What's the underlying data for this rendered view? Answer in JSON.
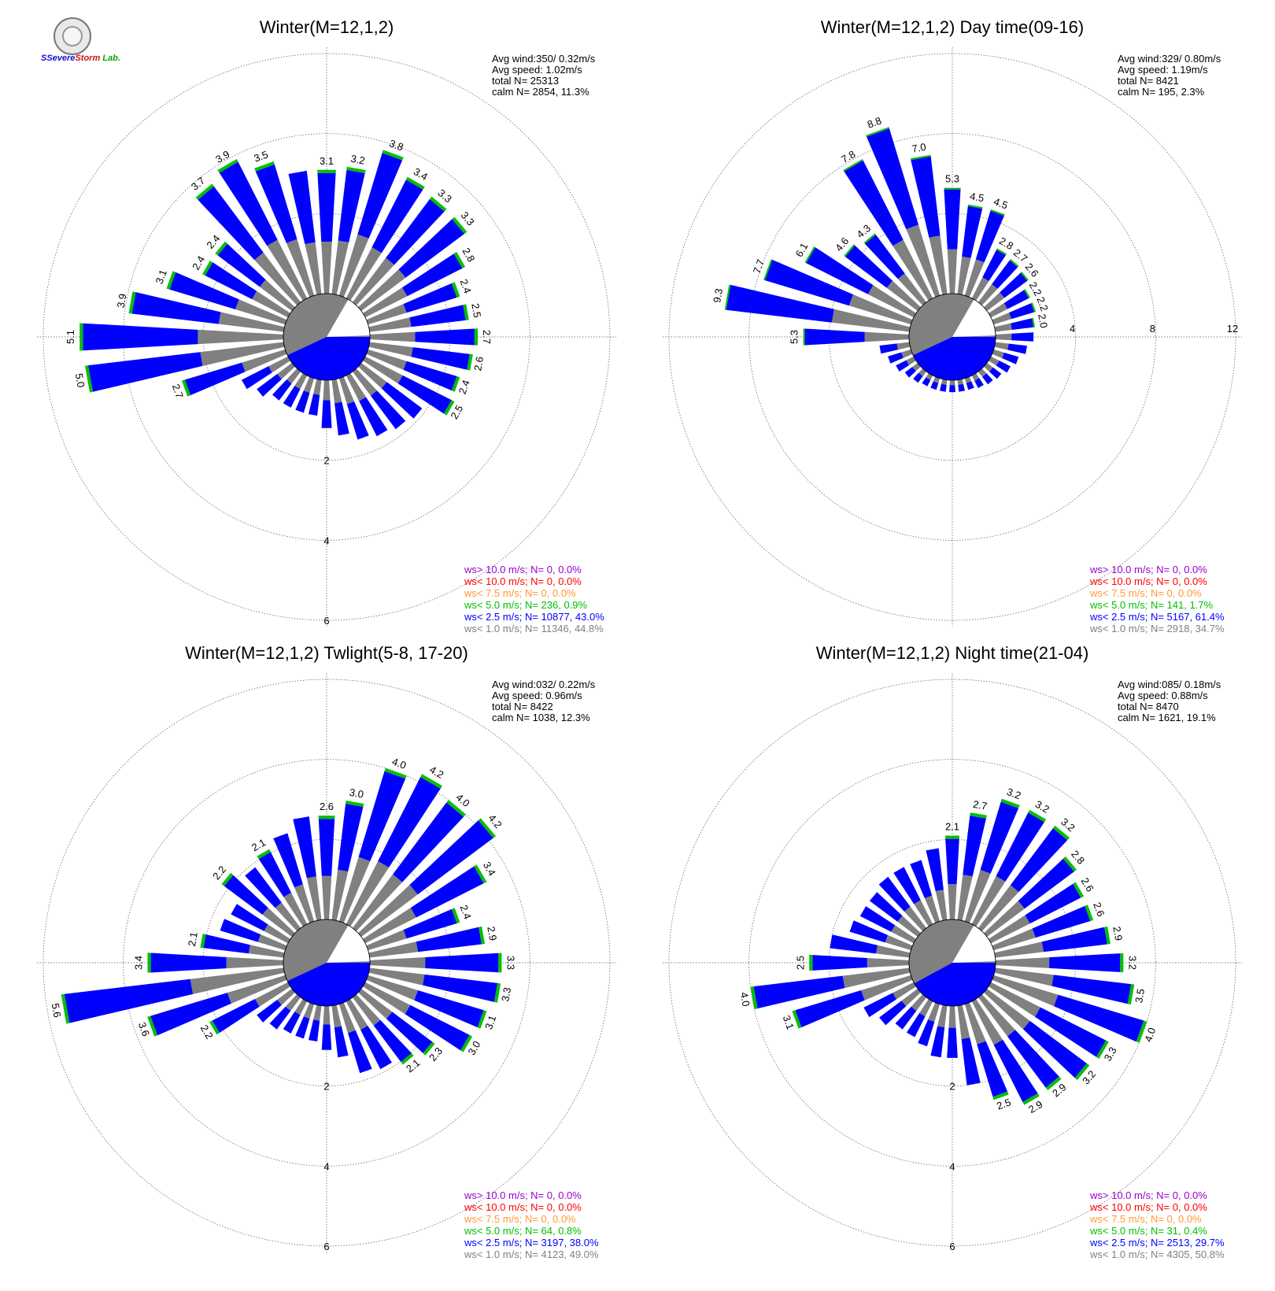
{
  "logo": {
    "brand_a": "SSevere",
    "brand_b": "Storm",
    "brand_c": "Lab."
  },
  "colors": {
    "calm": "#808080",
    "ws1": "#808080",
    "ws25": "#0000ff",
    "ws5": "#00c000",
    "ws75": "#ff9933",
    "ws10": "#ff0000",
    "ws10p": "#9900cc"
  },
  "chart_data": [
    {
      "type": "wind-rose",
      "title": "Winter(M=12,1,2)",
      "rmax": 6,
      "ring_ticks": [
        2,
        4,
        6
      ],
      "ring_label_side": "bottom",
      "stats": [
        "Avg wind:350/ 0.32m/s",
        "Avg speed: 1.02m/s",
        "total N=      25313",
        "calm N=   2854,  11.3%"
      ],
      "legend": [
        {
          "label": "ws> 10.0 m/s; N=      0,  0.0%",
          "color": "#9900cc"
        },
        {
          "label": "ws< 10.0 m/s; N=      0,  0.0%",
          "color": "#ff0000"
        },
        {
          "label": "ws<  7.5 m/s; N=      0,  0.0%",
          "color": "#ff9933"
        },
        {
          "label": "ws<  5.0 m/s; N=   236,  0.9%",
          "color": "#00c000"
        },
        {
          "label": "ws<  2.5 m/s; N= 10877, 43.0%",
          "color": "#0000ff"
        },
        {
          "label": "ws<  1.0 m/s; N= 11346, 44.8%",
          "color": "#808080"
        }
      ],
      "calm_pct": 11.3,
      "sectors": [
        {
          "dir": 0,
          "total": 3.1,
          "label": "3.1"
        },
        {
          "dir": 10,
          "total": 3.2,
          "label": "3.2"
        },
        {
          "dir": 20,
          "total": 3.8,
          "label": "3.8"
        },
        {
          "dir": 30,
          "total": 3.4,
          "label": "3.4"
        },
        {
          "dir": 40,
          "total": 3.3,
          "label": "3.3"
        },
        {
          "dir": 50,
          "total": 3.3,
          "label": "3.3"
        },
        {
          "dir": 60,
          "total": 2.8,
          "label": "2.8"
        },
        {
          "dir": 70,
          "total": 2.4,
          "label": "2.4"
        },
        {
          "dir": 80,
          "total": 2.5,
          "label": "2.5"
        },
        {
          "dir": 90,
          "total": 2.7,
          "label": "2.7"
        },
        {
          "dir": 100,
          "total": 2.6,
          "label": "2.6"
        },
        {
          "dir": 110,
          "total": 2.4,
          "label": "2.4"
        },
        {
          "dir": 120,
          "total": 2.5,
          "label": "2.5"
        },
        {
          "dir": 130,
          "total": 1.9,
          "label": ""
        },
        {
          "dir": 140,
          "total": 1.8,
          "label": ""
        },
        {
          "dir": 150,
          "total": 1.7,
          "label": ""
        },
        {
          "dir": 160,
          "total": 1.6,
          "label": ""
        },
        {
          "dir": 170,
          "total": 1.4,
          "label": ""
        },
        {
          "dir": 180,
          "total": 1.2,
          "label": ""
        },
        {
          "dir": 190,
          "total": 0.9,
          "label": ""
        },
        {
          "dir": 200,
          "total": 0.9,
          "label": ""
        },
        {
          "dir": 210,
          "total": 0.9,
          "label": ""
        },
        {
          "dir": 220,
          "total": 0.9,
          "label": ""
        },
        {
          "dir": 230,
          "total": 1.1,
          "label": ""
        },
        {
          "dir": 240,
          "total": 1.3,
          "label": ""
        },
        {
          "dir": 250,
          "total": 2.7,
          "label": "2.7"
        },
        {
          "dir": 260,
          "total": 5.0,
          "label": "5.0"
        },
        {
          "dir": 270,
          "total": 5.1,
          "label": "5.1"
        },
        {
          "dir": 280,
          "total": 3.9,
          "label": "3.9"
        },
        {
          "dir": 290,
          "total": 3.1,
          "label": "3.1"
        },
        {
          "dir": 300,
          "total": 2.4,
          "label": "2.4"
        },
        {
          "dir": 310,
          "total": 2.4,
          "label": "2.4"
        },
        {
          "dir": 320,
          "total": 3.7,
          "label": "3.7"
        },
        {
          "dir": 330,
          "total": 3.9,
          "label": "3.9"
        },
        {
          "dir": 340,
          "total": 3.5,
          "label": "3.5"
        },
        {
          "dir": 350,
          "total": 3.1,
          "label": ""
        }
      ]
    },
    {
      "type": "wind-rose",
      "title": "Winter(M=12,1,2) Day time(09-16)",
      "rmax": 12,
      "ring_ticks": [
        4,
        8,
        12
      ],
      "ring_label_side": "right",
      "stats": [
        "Avg wind:329/ 0.80m/s",
        "Avg speed: 1.19m/s",
        "total N=       8421",
        "calm N=    195,   2.3%"
      ],
      "legend": [
        {
          "label": "ws> 10.0 m/s; N=      0,  0.0%",
          "color": "#9900cc"
        },
        {
          "label": "ws< 10.0 m/s; N=      0,  0.0%",
          "color": "#ff0000"
        },
        {
          "label": "ws<  7.5 m/s; N=      0,  0.0%",
          "color": "#ff9933"
        },
        {
          "label": "ws<  5.0 m/s; N=   141,  1.7%",
          "color": "#00c000"
        },
        {
          "label": "ws<  2.5 m/s; N=  5167, 61.4%",
          "color": "#0000ff"
        },
        {
          "label": "ws<  1.0 m/s; N=  2918, 34.7%",
          "color": "#808080"
        }
      ],
      "calm_pct": 2.3,
      "sectors": [
        {
          "dir": 0,
          "total": 5.3,
          "label": "5.3"
        },
        {
          "dir": 10,
          "total": 4.5,
          "label": "4.5"
        },
        {
          "dir": 20,
          "total": 4.5,
          "label": "4.5"
        },
        {
          "dir": 30,
          "total": 2.8,
          "label": "2.8"
        },
        {
          "dir": 40,
          "total": 2.7,
          "label": "2.7"
        },
        {
          "dir": 50,
          "total": 2.6,
          "label": "2.6"
        },
        {
          "dir": 60,
          "total": 2.2,
          "label": "2.2"
        },
        {
          "dir": 70,
          "total": 2.2,
          "label": "2.2"
        },
        {
          "dir": 80,
          "total": 2.0,
          "label": "2.0"
        },
        {
          "dir": 90,
          "total": 1.9,
          "label": ""
        },
        {
          "dir": 100,
          "total": 1.6,
          "label": ""
        },
        {
          "dir": 110,
          "total": 1.3,
          "label": ""
        },
        {
          "dir": 120,
          "total": 1.1,
          "label": ""
        },
        {
          "dir": 130,
          "total": 0.9,
          "label": ""
        },
        {
          "dir": 140,
          "total": 0.8,
          "label": ""
        },
        {
          "dir": 150,
          "total": 0.7,
          "label": ""
        },
        {
          "dir": 160,
          "total": 0.6,
          "label": ""
        },
        {
          "dir": 170,
          "total": 0.6,
          "label": ""
        },
        {
          "dir": 180,
          "total": 0.6,
          "label": ""
        },
        {
          "dir": 190,
          "total": 0.6,
          "label": ""
        },
        {
          "dir": 200,
          "total": 0.6,
          "label": ""
        },
        {
          "dir": 210,
          "total": 0.6,
          "label": ""
        },
        {
          "dir": 220,
          "total": 0.7,
          "label": ""
        },
        {
          "dir": 230,
          "total": 0.8,
          "label": ""
        },
        {
          "dir": 240,
          "total": 1.0,
          "label": ""
        },
        {
          "dir": 250,
          "total": 1.2,
          "label": ""
        },
        {
          "dir": 260,
          "total": 1.5,
          "label": ""
        },
        {
          "dir": 270,
          "total": 5.3,
          "label": "5.3"
        },
        {
          "dir": 280,
          "total": 9.3,
          "label": "9.3"
        },
        {
          "dir": 290,
          "total": 7.7,
          "label": "7.7"
        },
        {
          "dir": 300,
          "total": 6.1,
          "label": "6.1"
        },
        {
          "dir": 310,
          "total": 4.6,
          "label": "4.6"
        },
        {
          "dir": 320,
          "total": 4.3,
          "label": "4.3"
        },
        {
          "dir": 330,
          "total": 7.8,
          "label": "7.8"
        },
        {
          "dir": 340,
          "total": 8.8,
          "label": "8.8"
        },
        {
          "dir": 350,
          "total": 7.0,
          "label": "7.0"
        }
      ]
    },
    {
      "type": "wind-rose",
      "title": "Winter(M=12,1,2) Twlight(5-8, 17-20)",
      "rmax": 6,
      "ring_ticks": [
        2,
        4,
        6
      ],
      "ring_label_side": "bottom",
      "stats": [
        "Avg wind:032/ 0.22m/s",
        "Avg speed: 0.96m/s",
        "total N=       8422",
        "calm N=   1038,  12.3%"
      ],
      "legend": [
        {
          "label": "ws> 10.0 m/s; N=      0,  0.0%",
          "color": "#9900cc"
        },
        {
          "label": "ws< 10.0 m/s; N=      0,  0.0%",
          "color": "#ff0000"
        },
        {
          "label": "ws<  7.5 m/s; N=      0,  0.0%",
          "color": "#ff9933"
        },
        {
          "label": "ws<  5.0 m/s; N=     64,  0.8%",
          "color": "#00c000"
        },
        {
          "label": "ws<  2.5 m/s; N=  3197, 38.0%",
          "color": "#0000ff"
        },
        {
          "label": "ws<  1.0 m/s; N=  4123, 49.0%",
          "color": "#808080"
        }
      ],
      "calm_pct": 12.3,
      "sectors": [
        {
          "dir": 0,
          "total": 2.6,
          "label": "2.6"
        },
        {
          "dir": 10,
          "total": 3.0,
          "label": "3.0"
        },
        {
          "dir": 20,
          "total": 4.0,
          "label": "4.0"
        },
        {
          "dir": 30,
          "total": 4.2,
          "label": "4.2"
        },
        {
          "dir": 40,
          "total": 4.0,
          "label": "4.0"
        },
        {
          "dir": 50,
          "total": 4.2,
          "label": "4.2"
        },
        {
          "dir": 60,
          "total": 3.4,
          "label": "3.4"
        },
        {
          "dir": 70,
          "total": 2.4,
          "label": "2.4"
        },
        {
          "dir": 80,
          "total": 2.9,
          "label": "2.9"
        },
        {
          "dir": 90,
          "total": 3.3,
          "label": "3.3"
        },
        {
          "dir": 100,
          "total": 3.3,
          "label": "3.3"
        },
        {
          "dir": 110,
          "total": 3.1,
          "label": "3.1"
        },
        {
          "dir": 120,
          "total": 3.0,
          "label": "3.0"
        },
        {
          "dir": 130,
          "total": 2.3,
          "label": "2.3"
        },
        {
          "dir": 140,
          "total": 2.1,
          "label": "2.1"
        },
        {
          "dir": 150,
          "total": 1.9,
          "label": ""
        },
        {
          "dir": 160,
          "total": 1.8,
          "label": ""
        },
        {
          "dir": 170,
          "total": 1.3,
          "label": ""
        },
        {
          "dir": 180,
          "total": 1.1,
          "label": ""
        },
        {
          "dir": 190,
          "total": 0.9,
          "label": ""
        },
        {
          "dir": 200,
          "total": 0.9,
          "label": ""
        },
        {
          "dir": 210,
          "total": 0.9,
          "label": ""
        },
        {
          "dir": 220,
          "total": 1.0,
          "label": ""
        },
        {
          "dir": 230,
          "total": 1.1,
          "label": ""
        },
        {
          "dir": 240,
          "total": 2.2,
          "label": "2.2"
        },
        {
          "dir": 250,
          "total": 3.6,
          "label": "3.6"
        },
        {
          "dir": 260,
          "total": 5.6,
          "label": "5.6"
        },
        {
          "dir": 270,
          "total": 3.4,
          "label": "3.4"
        },
        {
          "dir": 280,
          "total": 2.1,
          "label": "2.1"
        },
        {
          "dir": 290,
          "total": 1.7,
          "label": ""
        },
        {
          "dir": 300,
          "total": 1.6,
          "label": ""
        },
        {
          "dir": 310,
          "total": 2.2,
          "label": "2.2"
        },
        {
          "dir": 320,
          "total": 1.9,
          "label": ""
        },
        {
          "dir": 330,
          "total": 2.1,
          "label": "2.1"
        },
        {
          "dir": 340,
          "total": 2.3,
          "label": ""
        },
        {
          "dir": 350,
          "total": 2.6,
          "label": ""
        }
      ]
    },
    {
      "type": "wind-rose",
      "title": "Winter(M=12,1,2) Night time(21-04)",
      "rmax": 6,
      "ring_ticks": [
        2,
        4,
        6
      ],
      "ring_label_side": "bottom",
      "stats": [
        "Avg wind:085/ 0.18m/s",
        "Avg speed: 0.88m/s",
        "total N=       8470",
        "calm N=   1621,  19.1%"
      ],
      "legend": [
        {
          "label": "ws> 10.0 m/s; N=      0,  0.0%",
          "color": "#9900cc"
        },
        {
          "label": "ws< 10.0 m/s; N=      0,  0.0%",
          "color": "#ff0000"
        },
        {
          "label": "ws<  7.5 m/s; N=      0,  0.0%",
          "color": "#ff9933"
        },
        {
          "label": "ws<  5.0 m/s; N=     31,  0.4%",
          "color": "#00c000"
        },
        {
          "label": "ws<  2.5 m/s; N=  2513, 29.7%",
          "color": "#0000ff"
        },
        {
          "label": "ws<  1.0 m/s; N=  4305, 50.8%",
          "color": "#808080"
        }
      ],
      "calm_pct": 19.1,
      "sectors": [
        {
          "dir": 0,
          "total": 2.1,
          "label": "2.1"
        },
        {
          "dir": 10,
          "total": 2.7,
          "label": "2.7"
        },
        {
          "dir": 20,
          "total": 3.2,
          "label": "3.2"
        },
        {
          "dir": 30,
          "total": 3.2,
          "label": "3.2"
        },
        {
          "dir": 40,
          "total": 3.2,
          "label": "3.2"
        },
        {
          "dir": 50,
          "total": 2.8,
          "label": "2.8"
        },
        {
          "dir": 60,
          "total": 2.6,
          "label": "2.6"
        },
        {
          "dir": 70,
          "total": 2.6,
          "label": "2.6"
        },
        {
          "dir": 80,
          "total": 2.9,
          "label": "2.9"
        },
        {
          "dir": 90,
          "total": 3.2,
          "label": "3.2"
        },
        {
          "dir": 100,
          "total": 3.5,
          "label": "3.5"
        },
        {
          "dir": 110,
          "total": 4.0,
          "label": "4.0"
        },
        {
          "dir": 120,
          "total": 3.3,
          "label": "3.3"
        },
        {
          "dir": 130,
          "total": 3.2,
          "label": "3.2"
        },
        {
          "dir": 140,
          "total": 2.9,
          "label": "2.9"
        },
        {
          "dir": 150,
          "total": 2.9,
          "label": "2.9"
        },
        {
          "dir": 160,
          "total": 2.5,
          "label": "2.5"
        },
        {
          "dir": 170,
          "total": 2.0,
          "label": ""
        },
        {
          "dir": 180,
          "total": 1.3,
          "label": ""
        },
        {
          "dir": 190,
          "total": 1.3,
          "label": ""
        },
        {
          "dir": 200,
          "total": 1.1,
          "label": ""
        },
        {
          "dir": 210,
          "total": 1.0,
          "label": ""
        },
        {
          "dir": 220,
          "total": 1.0,
          "label": ""
        },
        {
          "dir": 230,
          "total": 1.2,
          "label": ""
        },
        {
          "dir": 240,
          "total": 1.4,
          "label": ""
        },
        {
          "dir": 250,
          "total": 3.1,
          "label": "3.1"
        },
        {
          "dir": 260,
          "total": 4.0,
          "label": "4.0"
        },
        {
          "dir": 270,
          "total": 2.5,
          "label": "2.5"
        },
        {
          "dir": 280,
          "total": 2.0,
          "label": ""
        },
        {
          "dir": 290,
          "total": 1.6,
          "label": ""
        },
        {
          "dir": 300,
          "total": 1.5,
          "label": ""
        },
        {
          "dir": 310,
          "total": 1.5,
          "label": ""
        },
        {
          "dir": 320,
          "total": 1.6,
          "label": ""
        },
        {
          "dir": 330,
          "total": 1.6,
          "label": ""
        },
        {
          "dir": 340,
          "total": 1.6,
          "label": ""
        },
        {
          "dir": 350,
          "total": 1.8,
          "label": ""
        }
      ]
    }
  ]
}
